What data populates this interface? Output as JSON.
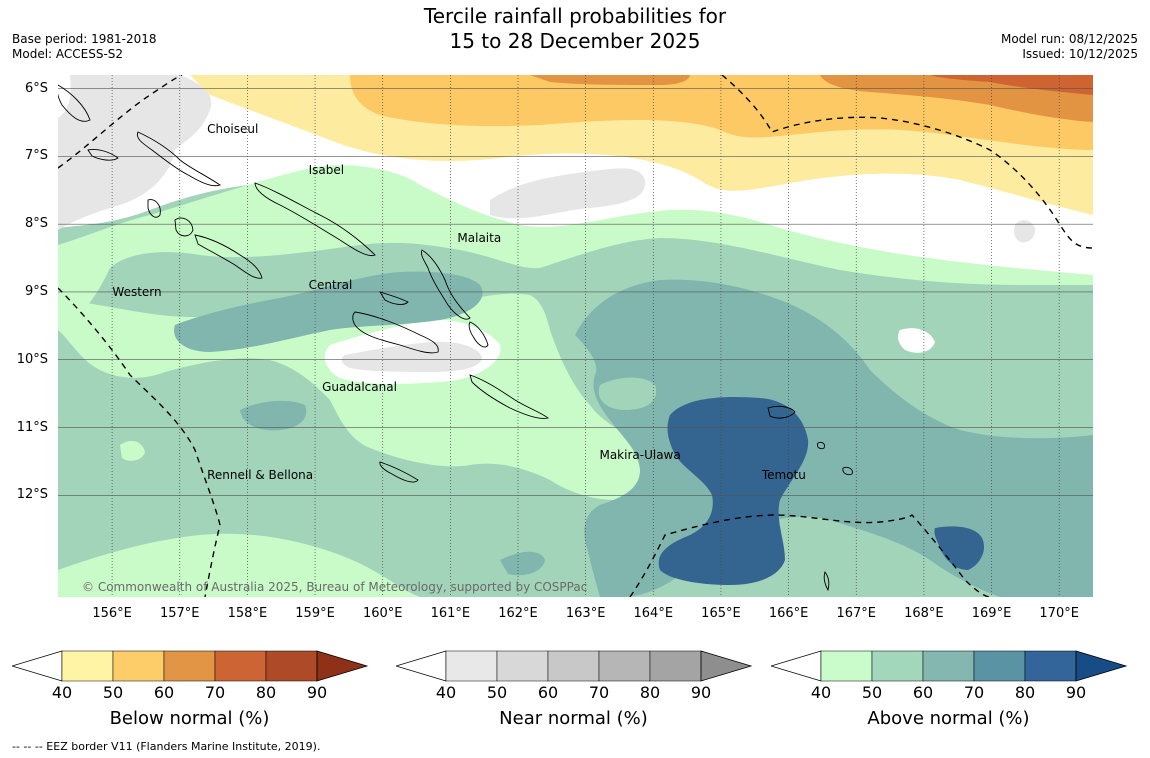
{
  "header": {
    "title_line1": "Tercile rainfall probabilities for",
    "title_line2": "15 to 28 December 2025",
    "base_period": "Base period: 1981-2018",
    "model": "Model: ACCESS-S2",
    "model_run": "Model run: 08/12/2025",
    "issued": "Issued: 10/12/2025"
  },
  "map": {
    "lat_labels": [
      "6°S",
      "7°S",
      "8°S",
      "9°S",
      "10°S",
      "11°S",
      "12°S"
    ],
    "lat_values": [
      6,
      7,
      8,
      9,
      10,
      11,
      12
    ],
    "lat_range": [
      5.8,
      13.5
    ],
    "lon_labels": [
      "156°E",
      "157°E",
      "158°E",
      "159°E",
      "160°E",
      "161°E",
      "162°E",
      "163°E",
      "164°E",
      "165°E",
      "166°E",
      "167°E",
      "168°E",
      "169°E",
      "170°E"
    ],
    "lon_values": [
      156,
      157,
      158,
      159,
      160,
      161,
      162,
      163,
      164,
      165,
      166,
      167,
      168,
      169,
      170
    ],
    "lon_range": [
      155.2,
      170.5
    ],
    "provinces": [
      {
        "name": "Choiseul",
        "lon": 157.7,
        "lat": 6.6
      },
      {
        "name": "Isabel",
        "lon": 159.2,
        "lat": 7.2
      },
      {
        "name": "Malaita",
        "lon": 161.4,
        "lat": 8.2
      },
      {
        "name": "Western",
        "lon": 156.3,
        "lat": 9.0
      },
      {
        "name": "Central",
        "lon": 159.2,
        "lat": 8.9
      },
      {
        "name": "Guadalcanal",
        "lon": 159.4,
        "lat": 10.4
      },
      {
        "name": "Makira-Ulawa",
        "lon": 163.5,
        "lat": 11.4
      },
      {
        "name": "Temotu",
        "lon": 165.9,
        "lat": 11.7
      },
      {
        "name": "Rennell & Bellona",
        "lon": 157.7,
        "lat": 11.7
      }
    ],
    "copyright": "© Commonwealth of Australia 2025, Bureau of Meteorology, supported by COSPPac",
    "colors": {
      "ocean_base": "#a8d5bf",
      "below": [
        "#fdeba0",
        "#fdc964",
        "#e39443",
        "#cf6432",
        "#b04a26",
        "#8e2f15"
      ],
      "near": [
        "#e6e6e6",
        "#d4d4d4",
        "#c4c4c4",
        "#b4b4b4",
        "#a2a2a2",
        "#8c8c8c"
      ],
      "above": [
        "#c9fbc8",
        "#a2d4ba",
        "#80b6ad",
        "#5b94a2",
        "#336590",
        "#124b85"
      ]
    }
  },
  "colorbars": [
    {
      "title": "Below normal (%)",
      "ticks": [
        "40",
        "50",
        "60",
        "70",
        "80",
        "90"
      ],
      "colors": [
        "#fff4a6",
        "#fdcd69",
        "#e29645",
        "#cd6434",
        "#ae4a27",
        "#8e3118"
      ]
    },
    {
      "title": "Near normal (%)",
      "ticks": [
        "40",
        "50",
        "60",
        "70",
        "80",
        "90"
      ],
      "colors": [
        "#e8e8e8",
        "#d8d8d8",
        "#c8c8c8",
        "#b6b6b6",
        "#a4a4a4",
        "#8e8e8e"
      ]
    },
    {
      "title": "Above normal (%)",
      "ticks": [
        "40",
        "50",
        "60",
        "70",
        "80",
        "90"
      ],
      "colors": [
        "#c9fbcb",
        "#a2d7bc",
        "#84b7af",
        "#5a93a4",
        "#33659a",
        "#174c86"
      ]
    }
  ],
  "footnote": "--  --  -- EEZ border V11 (Flanders Marine Institute, 2019)."
}
